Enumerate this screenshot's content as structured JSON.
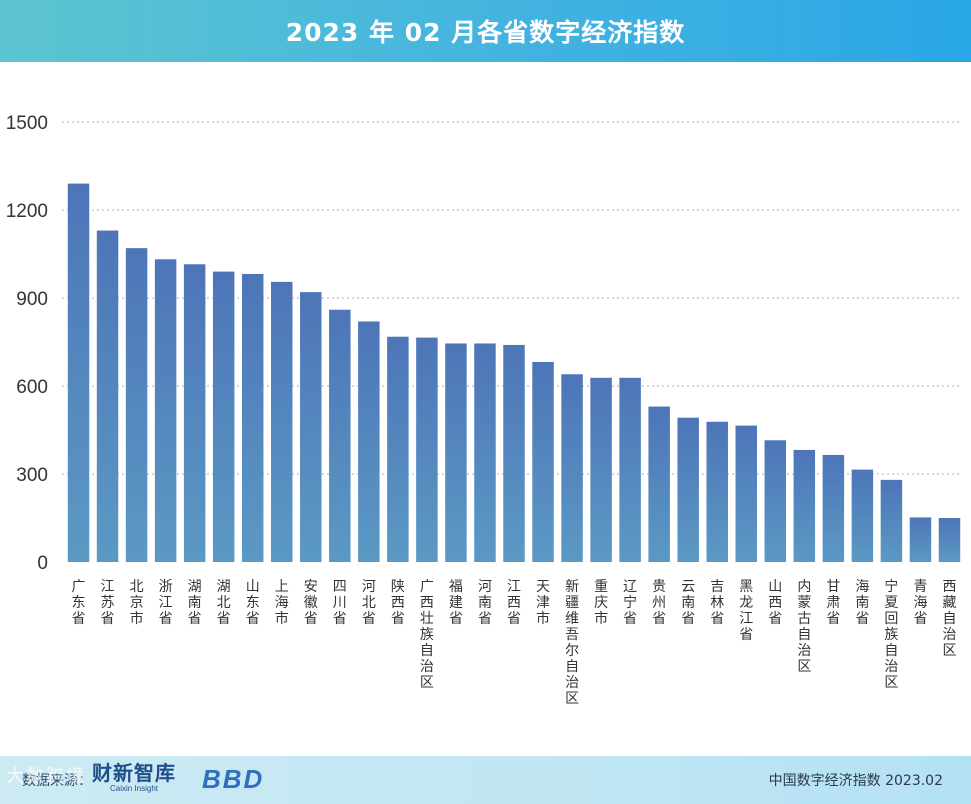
{
  "header": {
    "title": "2023 年 02 月各省数字经济指数"
  },
  "chart_data": {
    "type": "bar",
    "title": "2023 年 02 月各省数字经济指数",
    "xlabel": "",
    "ylabel": "",
    "ylim": [
      0,
      1500
    ],
    "yticks": [
      0,
      300,
      600,
      900,
      1200,
      1500
    ],
    "grid": true,
    "categories": [
      "广东省",
      "江苏省",
      "北京市",
      "浙江省",
      "湖南省",
      "湖北省",
      "山东省",
      "上海市",
      "安徽省",
      "四川省",
      "河北省",
      "陕西省",
      "广西壮族自治区",
      "福建省",
      "河南省",
      "江西省",
      "天津市",
      "新疆维吾尔自治区",
      "重庆市",
      "辽宁省",
      "贵州省",
      "云南省",
      "吉林省",
      "黑龙江省",
      "山西省",
      "内蒙古自治区",
      "甘肃省",
      "海南省",
      "宁夏回族自治区",
      "青海省",
      "西藏自治区"
    ],
    "values": [
      1290,
      1130,
      1070,
      1032,
      1015,
      990,
      982,
      955,
      920,
      860,
      820,
      768,
      765,
      745,
      745,
      740,
      682,
      640,
      628,
      628,
      530,
      492,
      478,
      465,
      415,
      382,
      365,
      315,
      280,
      152,
      150
    ],
    "colors": {
      "bar_top": "#4d75b8",
      "bar_bottom": "#5b99c4",
      "grid": "#b0b0b0",
      "axis_text": "#333333"
    }
  },
  "footer": {
    "source_label": "数据来源：",
    "caixin_logo": "财新智库",
    "caixin_logo_sub": "Caixin Insight",
    "bbd_logo": "BBD",
    "caption": "中国数字经济指数 2023.02"
  },
  "watermark": "大数跨境"
}
